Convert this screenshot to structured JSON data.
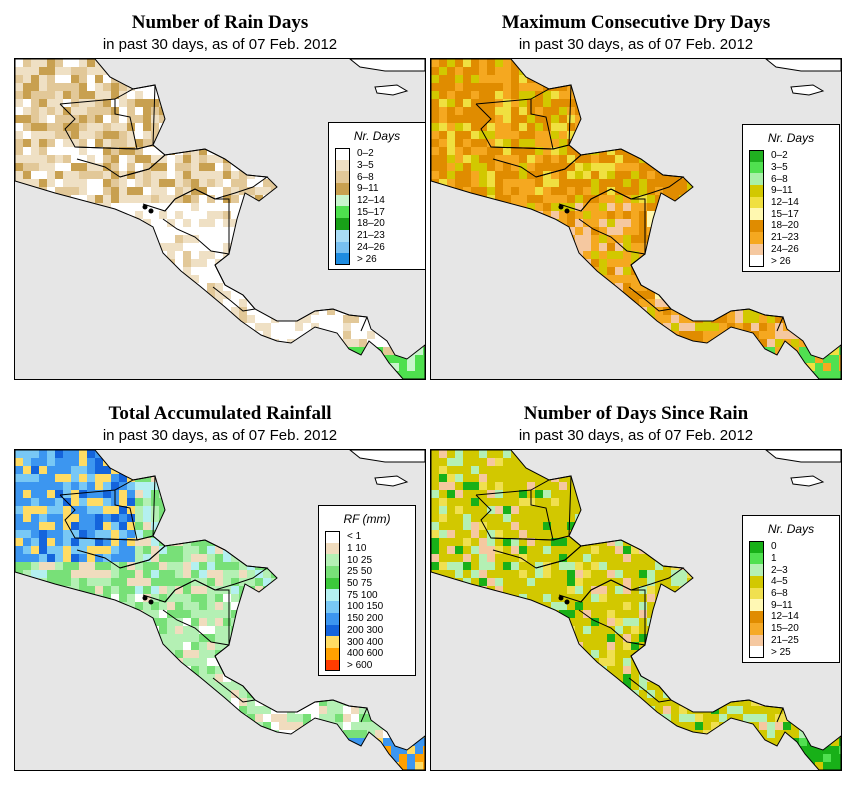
{
  "panels": [
    {
      "id": "rain-days",
      "title": "Number of Rain Days",
      "subtitle": "in past 30 days, as of  07 Feb. 2012",
      "legend_title": "Nr. Days",
      "palette": "brown-blue",
      "classes": [
        {
          "label": "0–2",
          "color": "#ffffff"
        },
        {
          "label": "3–5",
          "color": "#efe0c4"
        },
        {
          "label": "6–8",
          "color": "#e2c898"
        },
        {
          "label": "9–11",
          "color": "#c8a050"
        },
        {
          "label": "12–14",
          "color": "#c8f5cc"
        },
        {
          "label": "15–17",
          "color": "#4ee04e"
        },
        {
          "label": "18–20",
          "color": "#18a018"
        },
        {
          "label": "21–23",
          "color": "#a8dcf5"
        },
        {
          "label": "24–26",
          "color": "#78c0f0"
        },
        {
          "label": "> 26",
          "color": "#1e8ce0"
        }
      ]
    },
    {
      "id": "max-dry",
      "title": "Maximum Consecutive Dry Days",
      "subtitle": "in past 30 days, as of  07 Feb. 2012",
      "legend_title": "Nr. Days",
      "palette": "dry",
      "classes": [
        {
          "label": "0–2",
          "color": "#20b020"
        },
        {
          "label": "3–5",
          "color": "#50e050"
        },
        {
          "label": "6–8",
          "color": "#a8f0a8"
        },
        {
          "label": "9–11",
          "color": "#d2c800"
        },
        {
          "label": "12–14",
          "color": "#f0e040"
        },
        {
          "label": "15–17",
          "color": "#fff8b0"
        },
        {
          "label": "18–20",
          "color": "#e08c00"
        },
        {
          "label": "21–23",
          "color": "#f5a820"
        },
        {
          "label": "24–26",
          "color": "#f5c8a0"
        },
        {
          "label": "> 26",
          "color": "#ffffff"
        }
      ]
    },
    {
      "id": "total-rain",
      "title": "Total Accumulated Rainfall",
      "subtitle": "in past 30 days, as of  07 Feb. 2012",
      "legend_title": "RF (mm)",
      "palette": "rain",
      "classes": [
        {
          "label": "< 1",
          "color": "#ffffff"
        },
        {
          "label": "1  10",
          "color": "#f0dcbe"
        },
        {
          "label": "10  25",
          "color": "#b4f0b4"
        },
        {
          "label": "25  50",
          "color": "#78e078"
        },
        {
          "label": "50  75",
          "color": "#3cc83c"
        },
        {
          "label": "75  100",
          "color": "#b4f0f0"
        },
        {
          "label": "100  150",
          "color": "#78c8f5"
        },
        {
          "label": "150  200",
          "color": "#3c96f0"
        },
        {
          "label": "200  300",
          "color": "#1464dc"
        },
        {
          "label": "300  400",
          "color": "#ffdc64"
        },
        {
          "label": "400  600",
          "color": "#ffa000"
        },
        {
          "label": "> 600",
          "color": "#ff3c00"
        }
      ]
    },
    {
      "id": "days-since",
      "title": "Number of Days Since Rain",
      "subtitle": "in past 30 days, as of  07 Feb. 2012",
      "legend_title": "Nr. Days",
      "palette": "since",
      "classes": [
        {
          "label": "0",
          "color": "#18b018"
        },
        {
          "label": "1",
          "color": "#50e050"
        },
        {
          "label": "2–3",
          "color": "#b4f0b4"
        },
        {
          "label": "4–5",
          "color": "#d2c800"
        },
        {
          "label": "6–8",
          "color": "#f0e050"
        },
        {
          "label": "9–11",
          "color": "#fff8b4"
        },
        {
          "label": "12–14",
          "color": "#e08c00"
        },
        {
          "label": "15–20",
          "color": "#f5aa28"
        },
        {
          "label": "21–25",
          "color": "#f5c8a0"
        },
        {
          "label": "> 25",
          "color": "#ffffff"
        }
      ]
    }
  ]
}
